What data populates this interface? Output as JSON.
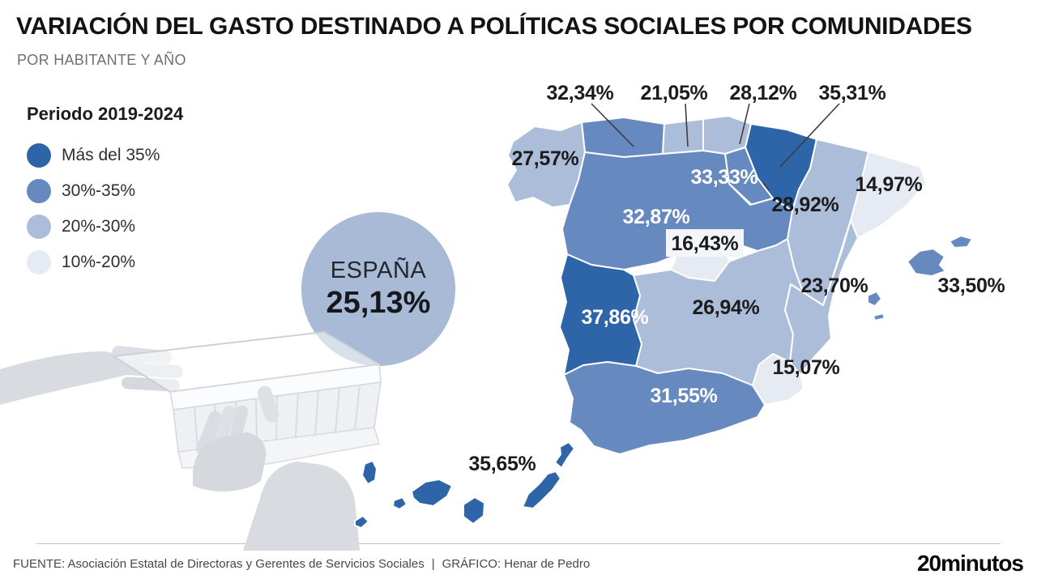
{
  "header": {
    "title": "VARIACIÓN DEL GASTO DESTINADO A POLÍTICAS SOCIALES POR COMUNIDADES",
    "subtitle": "POR HABITANTE Y AÑO"
  },
  "legend": {
    "title": "Periodo 2019-2024",
    "items": [
      {
        "label": "Más del 35%",
        "color": "#2e64a8"
      },
      {
        "label": "30%-35%",
        "color": "#6689bf"
      },
      {
        "label": "20%-30%",
        "color": "#acbdd9"
      },
      {
        "label": "10%-20%",
        "color": "#e6eaf2"
      }
    ]
  },
  "espana": {
    "label": "ESPAÑA",
    "value": "25,13%",
    "circle_color": "#a8bad6"
  },
  "footer": {
    "source": "FUENTE: Asociación Estatal de Directoras y Gerentes de Servicios Sociales",
    "separator": "|",
    "credit": "GRÁFICO: Henar de Pedro",
    "logo": "20minutos"
  },
  "chart_data": {
    "type": "choropleth",
    "title": "VARIACIÓN DEL GASTO DESTINADO A POLÍTICAS SOCIALES POR COMUNIDADES",
    "subtitle": "POR HABITANTE Y AÑO",
    "period": "Periodo 2019-2024",
    "unit": "%",
    "national": {
      "name": "ESPAÑA",
      "label": "25,13%",
      "value": 25.13
    },
    "bins": [
      {
        "label": "Más del 35%",
        "color": "#2e64a8"
      },
      {
        "label": "30%-35%",
        "color": "#6689bf"
      },
      {
        "label": "20%-30%",
        "color": "#acbdd9"
      },
      {
        "label": "10%-20%",
        "color": "#e6eaf2"
      }
    ],
    "regions": [
      {
        "key": "galicia",
        "name": "Galicia",
        "label": "27,57%",
        "value": 27.57,
        "bin": 2
      },
      {
        "key": "asturias",
        "name": "Asturias",
        "label": "32,34%",
        "value": 32.34,
        "bin": 1
      },
      {
        "key": "cantabria",
        "name": "Cantabria",
        "label": "21,05%",
        "value": 21.05,
        "bin": 2
      },
      {
        "key": "pais-vasco",
        "name": "País Vasco",
        "label": "28,12%",
        "value": 28.12,
        "bin": 2
      },
      {
        "key": "navarra",
        "name": "Navarra",
        "label": "35,31%",
        "value": 35.31,
        "bin": 0
      },
      {
        "key": "la-rioja",
        "name": "La Rioja",
        "label": "33,33%",
        "value": 33.33,
        "bin": 1
      },
      {
        "key": "cataluna",
        "name": "Cataluña",
        "label": "14,97%",
        "value": 14.97,
        "bin": 3
      },
      {
        "key": "aragon",
        "name": "Aragón",
        "label": "28,92%",
        "value": 28.92,
        "bin": 2
      },
      {
        "key": "castilla-y-leon",
        "name": "Castilla y León",
        "label": "32,87%",
        "value": 32.87,
        "bin": 1
      },
      {
        "key": "madrid",
        "name": "Comunidad de Madrid",
        "label": "16,43%",
        "value": 16.43,
        "bin": 3
      },
      {
        "key": "castilla-la-mancha",
        "name": "Castilla-La Mancha",
        "label": "26,94%",
        "value": 26.94,
        "bin": 2
      },
      {
        "key": "valencia",
        "name": "Comunitat Valenciana",
        "label": "23,70%",
        "value": 23.7,
        "bin": 2
      },
      {
        "key": "extremadura",
        "name": "Extremadura",
        "label": "37,86%",
        "value": 37.86,
        "bin": 0
      },
      {
        "key": "murcia",
        "name": "Región de Murcia",
        "label": "15,07%",
        "value": 15.07,
        "bin": 3
      },
      {
        "key": "andalucia",
        "name": "Andalucía",
        "label": "31,55%",
        "value": 31.55,
        "bin": 1
      },
      {
        "key": "baleares",
        "name": "Illes Balears",
        "label": "33,50%",
        "value": 33.5,
        "bin": 1
      },
      {
        "key": "canarias",
        "name": "Canarias",
        "label": "35,65%",
        "value": 35.65,
        "bin": 0
      }
    ]
  }
}
